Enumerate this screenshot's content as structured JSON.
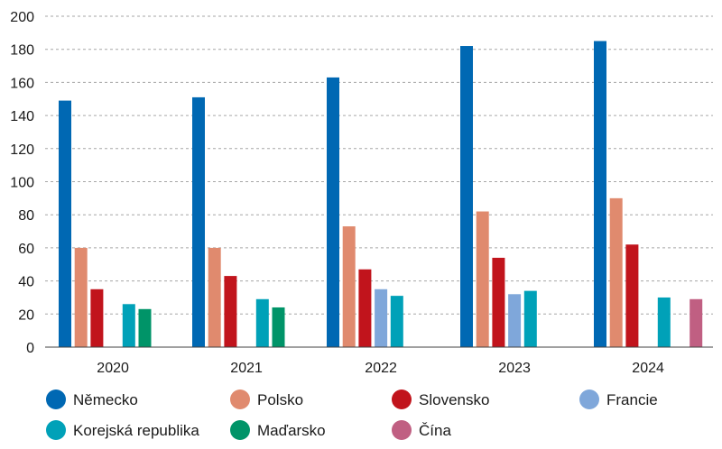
{
  "chart_data": {
    "type": "bar",
    "categories": [
      "2020",
      "2021",
      "2022",
      "2023",
      "2024"
    ],
    "ylim": [
      0,
      200
    ],
    "yticks": [
      0,
      20,
      40,
      60,
      80,
      100,
      120,
      140,
      160,
      180,
      200
    ],
    "grid": true,
    "legend_position": "bottom",
    "series": [
      {
        "name": "Německo",
        "color": "#0068b3",
        "values": [
          149,
          151,
          163,
          182,
          185
        ]
      },
      {
        "name": "Polsko",
        "color": "#e08a6e",
        "values": [
          60,
          60,
          73,
          82,
          90
        ]
      },
      {
        "name": "Slovensko",
        "color": "#c1141c",
        "values": [
          35,
          43,
          47,
          54,
          62
        ]
      },
      {
        "name": "Francie",
        "color": "#7fa7da",
        "values": [
          null,
          null,
          35,
          32,
          null
        ]
      },
      {
        "name": "Korejská republika",
        "color": "#00a1b8",
        "values": [
          26,
          29,
          31,
          34,
          30
        ]
      },
      {
        "name": "Maďarsko",
        "color": "#009468",
        "values": [
          23,
          24,
          null,
          null,
          null
        ]
      },
      {
        "name": "Čína",
        "color": "#c05f82",
        "values": [
          null,
          null,
          null,
          null,
          29
        ]
      }
    ]
  }
}
